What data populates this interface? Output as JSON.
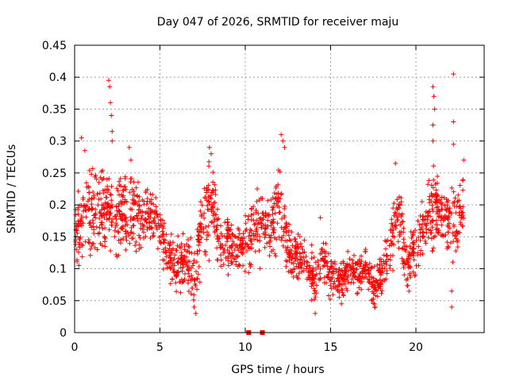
{
  "chart_data": {
    "type": "scatter",
    "title": "Day 047 of 2026, SRMTID for receiver maju",
    "xlabel": "GPS time / hours",
    "ylabel": "SRMTID / TECUs",
    "xlim": [
      0,
      24
    ],
    "ylim": [
      0,
      0.45
    ],
    "xticks": [
      0,
      5,
      10,
      15,
      20
    ],
    "xtick_labels": [
      "0",
      "5",
      "10",
      "15",
      "20"
    ],
    "yticks": [
      0,
      0.05,
      0.1,
      0.15,
      0.2,
      0.25,
      0.3,
      0.35,
      0.4,
      0.45
    ],
    "ytick_labels": [
      "0",
      "0.05",
      "0.1",
      "0.15",
      "0.2",
      "0.25",
      "0.3",
      "0.35",
      "0.4",
      "0.45"
    ],
    "grid": true,
    "marker": "+",
    "color": "#ff0000",
    "series": [
      {
        "name": "SRMTID",
        "approx_points": 1800,
        "x_range": [
          0,
          22.8
        ],
        "envelope": [
          {
            "x": 0.0,
            "median": 0.16,
            "spread": 0.06
          },
          {
            "x": 0.5,
            "median": 0.185,
            "spread": 0.07
          },
          {
            "x": 1.0,
            "median": 0.18,
            "spread": 0.06
          },
          {
            "x": 1.5,
            "median": 0.19,
            "spread": 0.06
          },
          {
            "x": 2.0,
            "median": 0.2,
            "spread": 0.06
          },
          {
            "x": 2.5,
            "median": 0.18,
            "spread": 0.06
          },
          {
            "x": 3.0,
            "median": 0.19,
            "spread": 0.07
          },
          {
            "x": 3.5,
            "median": 0.19,
            "spread": 0.06
          },
          {
            "x": 4.0,
            "median": 0.18,
            "spread": 0.05
          },
          {
            "x": 4.5,
            "median": 0.19,
            "spread": 0.05
          },
          {
            "x": 5.0,
            "median": 0.16,
            "spread": 0.04
          },
          {
            "x": 5.5,
            "median": 0.12,
            "spread": 0.04
          },
          {
            "x": 6.0,
            "median": 0.11,
            "spread": 0.04
          },
          {
            "x": 6.5,
            "median": 0.11,
            "spread": 0.04
          },
          {
            "x": 7.0,
            "median": 0.09,
            "spread": 0.05
          },
          {
            "x": 7.5,
            "median": 0.17,
            "spread": 0.07
          },
          {
            "x": 8.0,
            "median": 0.21,
            "spread": 0.07
          },
          {
            "x": 8.5,
            "median": 0.14,
            "spread": 0.04
          },
          {
            "x": 9.0,
            "median": 0.14,
            "spread": 0.05
          },
          {
            "x": 9.5,
            "median": 0.13,
            "spread": 0.04
          },
          {
            "x": 10.0,
            "median": 0.14,
            "spread": 0.05
          },
          {
            "x": 10.5,
            "median": 0.16,
            "spread": 0.05
          },
          {
            "x": 11.0,
            "median": 0.17,
            "spread": 0.06
          },
          {
            "x": 11.5,
            "median": 0.16,
            "spread": 0.05
          },
          {
            "x": 12.0,
            "median": 0.2,
            "spread": 0.07
          },
          {
            "x": 12.5,
            "median": 0.13,
            "spread": 0.04
          },
          {
            "x": 13.0,
            "median": 0.12,
            "spread": 0.03
          },
          {
            "x": 13.5,
            "median": 0.11,
            "spread": 0.03
          },
          {
            "x": 14.0,
            "median": 0.09,
            "spread": 0.04
          },
          {
            "x": 14.5,
            "median": 0.11,
            "spread": 0.04
          },
          {
            "x": 15.0,
            "median": 0.09,
            "spread": 0.04
          },
          {
            "x": 15.5,
            "median": 0.08,
            "spread": 0.03
          },
          {
            "x": 16.0,
            "median": 0.09,
            "spread": 0.03
          },
          {
            "x": 16.5,
            "median": 0.09,
            "spread": 0.03
          },
          {
            "x": 17.0,
            "median": 0.1,
            "spread": 0.03
          },
          {
            "x": 17.5,
            "median": 0.07,
            "spread": 0.03
          },
          {
            "x": 18.0,
            "median": 0.09,
            "spread": 0.03
          },
          {
            "x": 18.5,
            "median": 0.14,
            "spread": 0.05
          },
          {
            "x": 19.0,
            "median": 0.19,
            "spread": 0.05
          },
          {
            "x": 19.5,
            "median": 0.1,
            "spread": 0.04
          },
          {
            "x": 20.0,
            "median": 0.13,
            "spread": 0.04
          },
          {
            "x": 20.5,
            "median": 0.17,
            "spread": 0.05
          },
          {
            "x": 21.0,
            "median": 0.2,
            "spread": 0.06
          },
          {
            "x": 21.5,
            "median": 0.19,
            "spread": 0.05
          },
          {
            "x": 22.0,
            "median": 0.17,
            "spread": 0.06
          },
          {
            "x": 22.5,
            "median": 0.18,
            "spread": 0.05
          },
          {
            "x": 22.8,
            "median": 0.2,
            "spread": 0.05
          }
        ],
        "outliers": [
          [
            0.4,
            0.305
          ],
          [
            0.6,
            0.285
          ],
          [
            2.0,
            0.395
          ],
          [
            2.05,
            0.385
          ],
          [
            2.1,
            0.36
          ],
          [
            2.15,
            0.34
          ],
          [
            2.2,
            0.315
          ],
          [
            2.2,
            0.3
          ],
          [
            3.2,
            0.29
          ],
          [
            3.3,
            0.27
          ],
          [
            7.1,
            0.03
          ],
          [
            7.0,
            0.04
          ],
          [
            7.9,
            0.29
          ],
          [
            8.0,
            0.28
          ],
          [
            10.7,
            0.225
          ],
          [
            11.0,
            0.21
          ],
          [
            12.1,
            0.31
          ],
          [
            12.2,
            0.3
          ],
          [
            12.3,
            0.29
          ],
          [
            14.1,
            0.03
          ],
          [
            14.4,
            0.18
          ],
          [
            17.6,
            0.04
          ],
          [
            18.8,
            0.265
          ],
          [
            21.0,
            0.385
          ],
          [
            21.05,
            0.37
          ],
          [
            21.1,
            0.35
          ],
          [
            21.0,
            0.325
          ],
          [
            21.0,
            0.3
          ],
          [
            22.2,
            0.405
          ],
          [
            22.2,
            0.33
          ],
          [
            22.2,
            0.295
          ],
          [
            22.1,
            0.04
          ],
          [
            22.1,
            0.065
          ],
          [
            22.8,
            0.27
          ]
        ],
        "zero_points": [
          [
            10.2,
            0.0
          ],
          [
            11.0,
            0.0
          ]
        ]
      }
    ]
  }
}
